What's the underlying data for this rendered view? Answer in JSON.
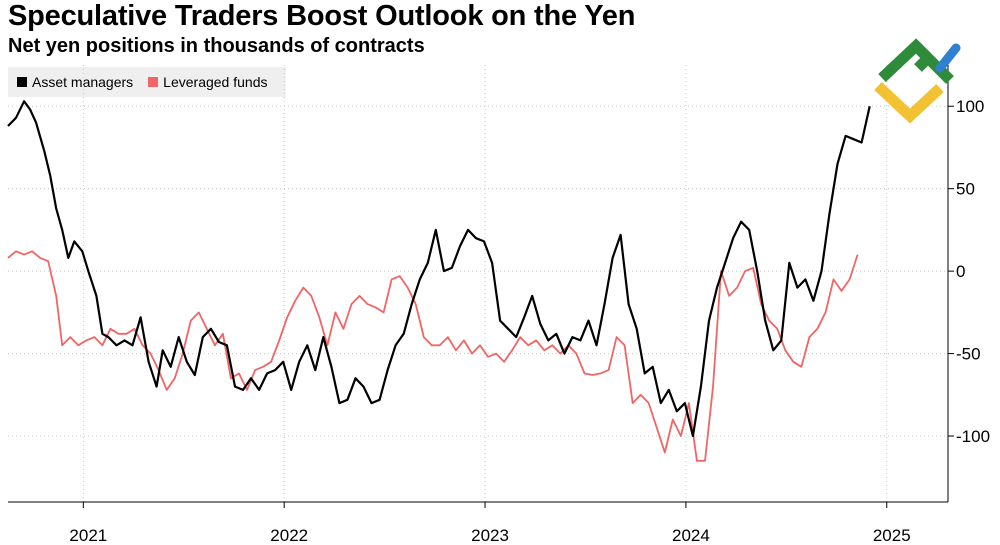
{
  "title": "Speculative Traders Boost Outlook on the Yen",
  "subtitle": "Net yen positions in thousands of contracts",
  "legend": [
    {
      "name": "Asset managers",
      "color": "#000000"
    },
    {
      "name": "Leveraged funds",
      "color": "#f06565"
    }
  ],
  "logo": {
    "name": "site-logo",
    "colors": [
      "#2e8b3a",
      "#f2c232",
      "#2f80d1"
    ]
  },
  "chart_data": {
    "type": "line",
    "title": "Speculative Traders Boost Outlook on the Yen",
    "subtitle": "Net yen positions in thousands of contracts",
    "xlabel": "",
    "ylabel": "",
    "xlim": [
      2020.6,
      2025.28
    ],
    "ylim": [
      -140,
      125
    ],
    "y_ticks": [
      100,
      50,
      0,
      -50,
      -100
    ],
    "y_tick_labels": [
      "100",
      "50",
      "0",
      "-50",
      "-100"
    ],
    "x_ticks": [
      2021,
      2022,
      2023,
      2024,
      2025
    ],
    "x_tick_labels": [
      "2021",
      "2022",
      "2023",
      "2024",
      "2025"
    ],
    "grid": "dotted",
    "legend_position": "top-left",
    "series": [
      {
        "name": "Asset managers",
        "color": "#000000",
        "points": [
          [
            2020.6,
            88
          ],
          [
            2020.64,
            93
          ],
          [
            2020.68,
            103
          ],
          [
            2020.71,
            98
          ],
          [
            2020.74,
            90
          ],
          [
            2020.78,
            73
          ],
          [
            2020.81,
            58
          ],
          [
            2020.84,
            38
          ],
          [
            2020.87,
            25
          ],
          [
            2020.9,
            8
          ],
          [
            2020.93,
            18
          ],
          [
            2020.97,
            12
          ],
          [
            2021.0,
            0
          ],
          [
            2021.04,
            -15
          ],
          [
            2021.07,
            -38
          ],
          [
            2021.1,
            -40
          ],
          [
            2021.14,
            -45
          ],
          [
            2021.18,
            -42
          ],
          [
            2021.22,
            -45
          ],
          [
            2021.26,
            -28
          ],
          [
            2021.3,
            -55
          ],
          [
            2021.34,
            -70
          ],
          [
            2021.37,
            -48
          ],
          [
            2021.41,
            -58
          ],
          [
            2021.45,
            -40
          ],
          [
            2021.49,
            -55
          ],
          [
            2021.53,
            -63
          ],
          [
            2021.57,
            -40
          ],
          [
            2021.61,
            -35
          ],
          [
            2021.65,
            -43
          ],
          [
            2021.69,
            -45
          ],
          [
            2021.73,
            -70
          ],
          [
            2021.77,
            -72
          ],
          [
            2021.81,
            -65
          ],
          [
            2021.85,
            -72
          ],
          [
            2021.89,
            -62
          ],
          [
            2021.93,
            -60
          ],
          [
            2021.97,
            -55
          ],
          [
            2022.01,
            -72
          ],
          [
            2022.05,
            -55
          ],
          [
            2022.09,
            -45
          ],
          [
            2022.13,
            -60
          ],
          [
            2022.17,
            -40
          ],
          [
            2022.21,
            -58
          ],
          [
            2022.25,
            -80
          ],
          [
            2022.29,
            -78
          ],
          [
            2022.33,
            -65
          ],
          [
            2022.37,
            -70
          ],
          [
            2022.41,
            -80
          ],
          [
            2022.45,
            -78
          ],
          [
            2022.49,
            -60
          ],
          [
            2022.53,
            -45
          ],
          [
            2022.57,
            -38
          ],
          [
            2022.61,
            -20
          ],
          [
            2022.65,
            -5
          ],
          [
            2022.69,
            5
          ],
          [
            2022.73,
            25
          ],
          [
            2022.77,
            0
          ],
          [
            2022.81,
            2
          ],
          [
            2022.85,
            15
          ],
          [
            2022.89,
            25
          ],
          [
            2022.93,
            20
          ],
          [
            2022.97,
            18
          ],
          [
            2023.01,
            5
          ],
          [
            2023.05,
            -30
          ],
          [
            2023.09,
            -35
          ],
          [
            2023.13,
            -40
          ],
          [
            2023.17,
            -28
          ],
          [
            2023.21,
            -15
          ],
          [
            2023.25,
            -32
          ],
          [
            2023.29,
            -42
          ],
          [
            2023.33,
            -38
          ],
          [
            2023.37,
            -50
          ],
          [
            2023.41,
            -40
          ],
          [
            2023.45,
            -42
          ],
          [
            2023.49,
            -30
          ],
          [
            2023.53,
            -45
          ],
          [
            2023.57,
            -20
          ],
          [
            2023.61,
            8
          ],
          [
            2023.65,
            22
          ],
          [
            2023.69,
            -20
          ],
          [
            2023.73,
            -35
          ],
          [
            2023.77,
            -62
          ],
          [
            2023.81,
            -58
          ],
          [
            2023.85,
            -80
          ],
          [
            2023.89,
            -72
          ],
          [
            2023.93,
            -85
          ],
          [
            2023.97,
            -80
          ],
          [
            2024.01,
            -100
          ],
          [
            2024.05,
            -70
          ],
          [
            2024.09,
            -30
          ],
          [
            2024.13,
            -10
          ],
          [
            2024.17,
            5
          ],
          [
            2024.21,
            20
          ],
          [
            2024.25,
            30
          ],
          [
            2024.29,
            25
          ],
          [
            2024.33,
            0
          ],
          [
            2024.37,
            -30
          ],
          [
            2024.41,
            -48
          ],
          [
            2024.45,
            -42
          ],
          [
            2024.49,
            5
          ],
          [
            2024.53,
            -10
          ],
          [
            2024.57,
            -5
          ],
          [
            2024.61,
            -18
          ],
          [
            2024.65,
            0
          ],
          [
            2024.69,
            35
          ],
          [
            2024.73,
            65
          ],
          [
            2024.77,
            82
          ],
          [
            2024.81,
            80
          ],
          [
            2024.85,
            78
          ],
          [
            2024.89,
            100
          ]
        ]
      },
      {
        "name": "Leveraged funds",
        "color": "#f06565",
        "points": [
          [
            2020.6,
            8
          ],
          [
            2020.64,
            12
          ],
          [
            2020.68,
            10
          ],
          [
            2020.72,
            12
          ],
          [
            2020.76,
            8
          ],
          [
            2020.8,
            6
          ],
          [
            2020.84,
            -15
          ],
          [
            2020.87,
            -45
          ],
          [
            2020.91,
            -40
          ],
          [
            2020.95,
            -45
          ],
          [
            2020.99,
            -42
          ],
          [
            2021.03,
            -40
          ],
          [
            2021.07,
            -45
          ],
          [
            2021.11,
            -35
          ],
          [
            2021.15,
            -38
          ],
          [
            2021.19,
            -38
          ],
          [
            2021.23,
            -35
          ],
          [
            2021.27,
            -45
          ],
          [
            2021.31,
            -50
          ],
          [
            2021.35,
            -60
          ],
          [
            2021.39,
            -72
          ],
          [
            2021.43,
            -65
          ],
          [
            2021.47,
            -50
          ],
          [
            2021.51,
            -30
          ],
          [
            2021.55,
            -25
          ],
          [
            2021.59,
            -35
          ],
          [
            2021.63,
            -45
          ],
          [
            2021.67,
            -38
          ],
          [
            2021.71,
            -65
          ],
          [
            2021.75,
            -62
          ],
          [
            2021.79,
            -72
          ],
          [
            2021.83,
            -60
          ],
          [
            2021.87,
            -58
          ],
          [
            2021.91,
            -55
          ],
          [
            2021.95,
            -42
          ],
          [
            2021.99,
            -28
          ],
          [
            2022.03,
            -18
          ],
          [
            2022.07,
            -10
          ],
          [
            2022.11,
            -15
          ],
          [
            2022.15,
            -28
          ],
          [
            2022.19,
            -45
          ],
          [
            2022.23,
            -25
          ],
          [
            2022.27,
            -35
          ],
          [
            2022.31,
            -20
          ],
          [
            2022.35,
            -15
          ],
          [
            2022.39,
            -20
          ],
          [
            2022.43,
            -22
          ],
          [
            2022.47,
            -25
          ],
          [
            2022.51,
            -5
          ],
          [
            2022.55,
            -3
          ],
          [
            2022.59,
            -10
          ],
          [
            2022.63,
            -20
          ],
          [
            2022.67,
            -40
          ],
          [
            2022.71,
            -45
          ],
          [
            2022.75,
            -45
          ],
          [
            2022.79,
            -40
          ],
          [
            2022.83,
            -48
          ],
          [
            2022.87,
            -42
          ],
          [
            2022.91,
            -50
          ],
          [
            2022.95,
            -45
          ],
          [
            2022.99,
            -52
          ],
          [
            2023.03,
            -50
          ],
          [
            2023.07,
            -55
          ],
          [
            2023.11,
            -48
          ],
          [
            2023.15,
            -40
          ],
          [
            2023.19,
            -45
          ],
          [
            2023.23,
            -42
          ],
          [
            2023.27,
            -48
          ],
          [
            2023.31,
            -45
          ],
          [
            2023.35,
            -50
          ],
          [
            2023.39,
            -45
          ],
          [
            2023.43,
            -50
          ],
          [
            2023.47,
            -62
          ],
          [
            2023.51,
            -63
          ],
          [
            2023.55,
            -62
          ],
          [
            2023.59,
            -60
          ],
          [
            2023.63,
            -40
          ],
          [
            2023.67,
            -45
          ],
          [
            2023.71,
            -80
          ],
          [
            2023.75,
            -75
          ],
          [
            2023.79,
            -80
          ],
          [
            2023.83,
            -95
          ],
          [
            2023.87,
            -110
          ],
          [
            2023.91,
            -90
          ],
          [
            2023.95,
            -100
          ],
          [
            2023.99,
            -80
          ],
          [
            2024.03,
            -115
          ],
          [
            2024.07,
            -115
          ],
          [
            2024.11,
            -70
          ],
          [
            2024.15,
            0
          ],
          [
            2024.19,
            -15
          ],
          [
            2024.23,
            -10
          ],
          [
            2024.27,
            0
          ],
          [
            2024.31,
            2
          ],
          [
            2024.35,
            -20
          ],
          [
            2024.39,
            -30
          ],
          [
            2024.43,
            -35
          ],
          [
            2024.47,
            -48
          ],
          [
            2024.51,
            -55
          ],
          [
            2024.55,
            -58
          ],
          [
            2024.59,
            -40
          ],
          [
            2024.63,
            -35
          ],
          [
            2024.67,
            -25
          ],
          [
            2024.71,
            -5
          ],
          [
            2024.75,
            -12
          ],
          [
            2024.79,
            -5
          ],
          [
            2024.83,
            10
          ]
        ]
      }
    ]
  }
}
